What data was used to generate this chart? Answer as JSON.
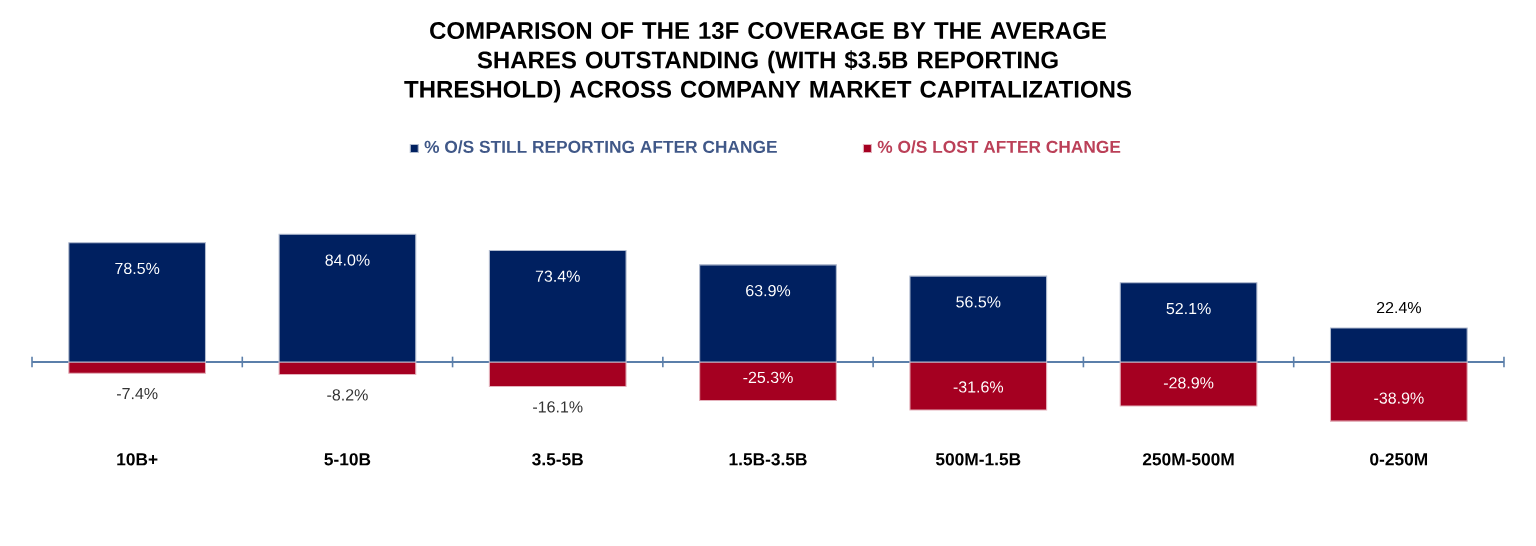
{
  "chart_data": {
    "type": "bar",
    "title": "COMPARISON OF THE 13F COVERAGE BY THE AVERAGE SHARES OUTSTANDING (WITH $3.5B REPORTING THRESHOLD) ACROSS COMPANY MARKET CAPITALIZATIONS",
    "categories": [
      "10B+",
      "5-10B",
      "3.5-5B",
      "1.5B-3.5B",
      "500M-1.5B",
      "250M-500M",
      "0-250M"
    ],
    "series": [
      {
        "name": "% O/S STILL REPORTING AFTER CHANGE",
        "color": "#002060",
        "values": [
          78.5,
          84.0,
          73.4,
          63.9,
          56.5,
          52.1,
          22.4
        ],
        "value_labels": [
          "78.5%",
          "84.0%",
          "73.4%",
          "63.9%",
          "56.5%",
          "52.1%",
          "22.4%"
        ]
      },
      {
        "name": "% O/S LOST AFTER CHANGE",
        "color": "#a50021",
        "values": [
          -7.4,
          -8.2,
          -16.1,
          -25.3,
          -31.6,
          -28.9,
          -38.9
        ],
        "value_labels": [
          "-7.4%",
          "-8.2%",
          "-16.1%",
          "-25.3%",
          "-31.6%",
          "-28.9%",
          "-38.9%"
        ]
      }
    ],
    "stacked": true,
    "ref_lines": [
      {
        "axis": "y",
        "value": 0,
        "color": "#5b7faa"
      }
    ],
    "legend": "top"
  }
}
